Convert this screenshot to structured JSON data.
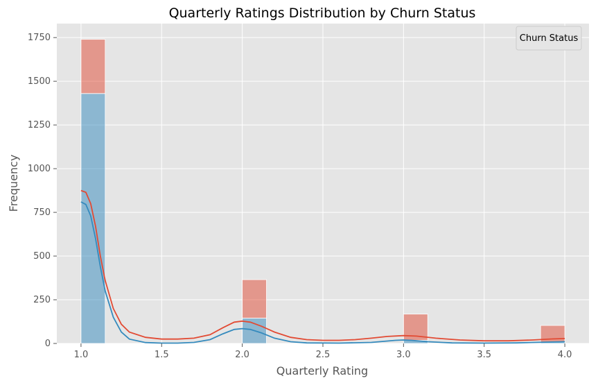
{
  "chart_data": {
    "type": "bar",
    "title": "Quarterly Ratings Distribution by Churn Status",
    "xlabel": "Quarterly Rating",
    "ylabel": "Frequency",
    "xlim": [
      0.85,
      4.15
    ],
    "ylim": [
      0,
      1830
    ],
    "x_ticks": [
      "1.0",
      "1.5",
      "2.0",
      "2.5",
      "3.0",
      "3.5",
      "4.0"
    ],
    "y_ticks": [
      "0",
      "250",
      "500",
      "750",
      "1000",
      "1250",
      "1500",
      "1750"
    ],
    "grid": true,
    "stacked": true,
    "bin_width": 0.15,
    "legend": {
      "title": "Churn Status",
      "position": "top-right",
      "entries": []
    },
    "series": [
      {
        "color": "#348abd",
        "bins": [
          {
            "x_start": 1.0,
            "value": 1430
          },
          {
            "x_start": 2.0,
            "value": 145
          },
          {
            "x_start": 3.0,
            "value": 18
          },
          {
            "x_start": 3.85,
            "value": 8
          }
        ],
        "kde": [
          [
            1.0,
            810
          ],
          [
            1.03,
            795
          ],
          [
            1.06,
            730
          ],
          [
            1.09,
            600
          ],
          [
            1.12,
            440
          ],
          [
            1.15,
            300
          ],
          [
            1.2,
            150
          ],
          [
            1.25,
            65
          ],
          [
            1.3,
            25
          ],
          [
            1.4,
            5
          ],
          [
            1.5,
            2
          ],
          [
            1.6,
            2
          ],
          [
            1.7,
            6
          ],
          [
            1.8,
            22
          ],
          [
            1.88,
            55
          ],
          [
            1.95,
            80
          ],
          [
            2.0,
            85
          ],
          [
            2.05,
            80
          ],
          [
            2.12,
            60
          ],
          [
            2.2,
            30
          ],
          [
            2.3,
            10
          ],
          [
            2.4,
            3
          ],
          [
            2.6,
            2
          ],
          [
            2.8,
            6
          ],
          [
            2.95,
            18
          ],
          [
            3.0,
            20
          ],
          [
            3.05,
            18
          ],
          [
            3.15,
            10
          ],
          [
            3.3,
            3
          ],
          [
            3.5,
            2
          ],
          [
            3.7,
            3
          ],
          [
            3.9,
            8
          ],
          [
            4.0,
            10
          ]
        ]
      },
      {
        "color": "#e24a33",
        "bins": [
          {
            "x_start": 1.0,
            "value": 310
          },
          {
            "x_start": 2.0,
            "value": 220
          },
          {
            "x_start": 3.0,
            "value": 150
          },
          {
            "x_start": 3.85,
            "value": 95
          }
        ],
        "kde": [
          [
            1.0,
            875
          ],
          [
            1.03,
            865
          ],
          [
            1.06,
            800
          ],
          [
            1.09,
            670
          ],
          [
            1.12,
            500
          ],
          [
            1.15,
            360
          ],
          [
            1.2,
            200
          ],
          [
            1.25,
            110
          ],
          [
            1.3,
            65
          ],
          [
            1.4,
            35
          ],
          [
            1.5,
            25
          ],
          [
            1.6,
            25
          ],
          [
            1.7,
            30
          ],
          [
            1.8,
            50
          ],
          [
            1.88,
            90
          ],
          [
            1.95,
            122
          ],
          [
            2.0,
            128
          ],
          [
            2.05,
            122
          ],
          [
            2.12,
            98
          ],
          [
            2.2,
            65
          ],
          [
            2.3,
            35
          ],
          [
            2.4,
            22
          ],
          [
            2.5,
            18
          ],
          [
            2.6,
            18
          ],
          [
            2.7,
            22
          ],
          [
            2.8,
            30
          ],
          [
            2.9,
            40
          ],
          [
            3.0,
            45
          ],
          [
            3.08,
            42
          ],
          [
            3.2,
            30
          ],
          [
            3.35,
            20
          ],
          [
            3.5,
            15
          ],
          [
            3.65,
            15
          ],
          [
            3.8,
            20
          ],
          [
            3.92,
            26
          ],
          [
            4.0,
            28
          ]
        ]
      }
    ]
  }
}
